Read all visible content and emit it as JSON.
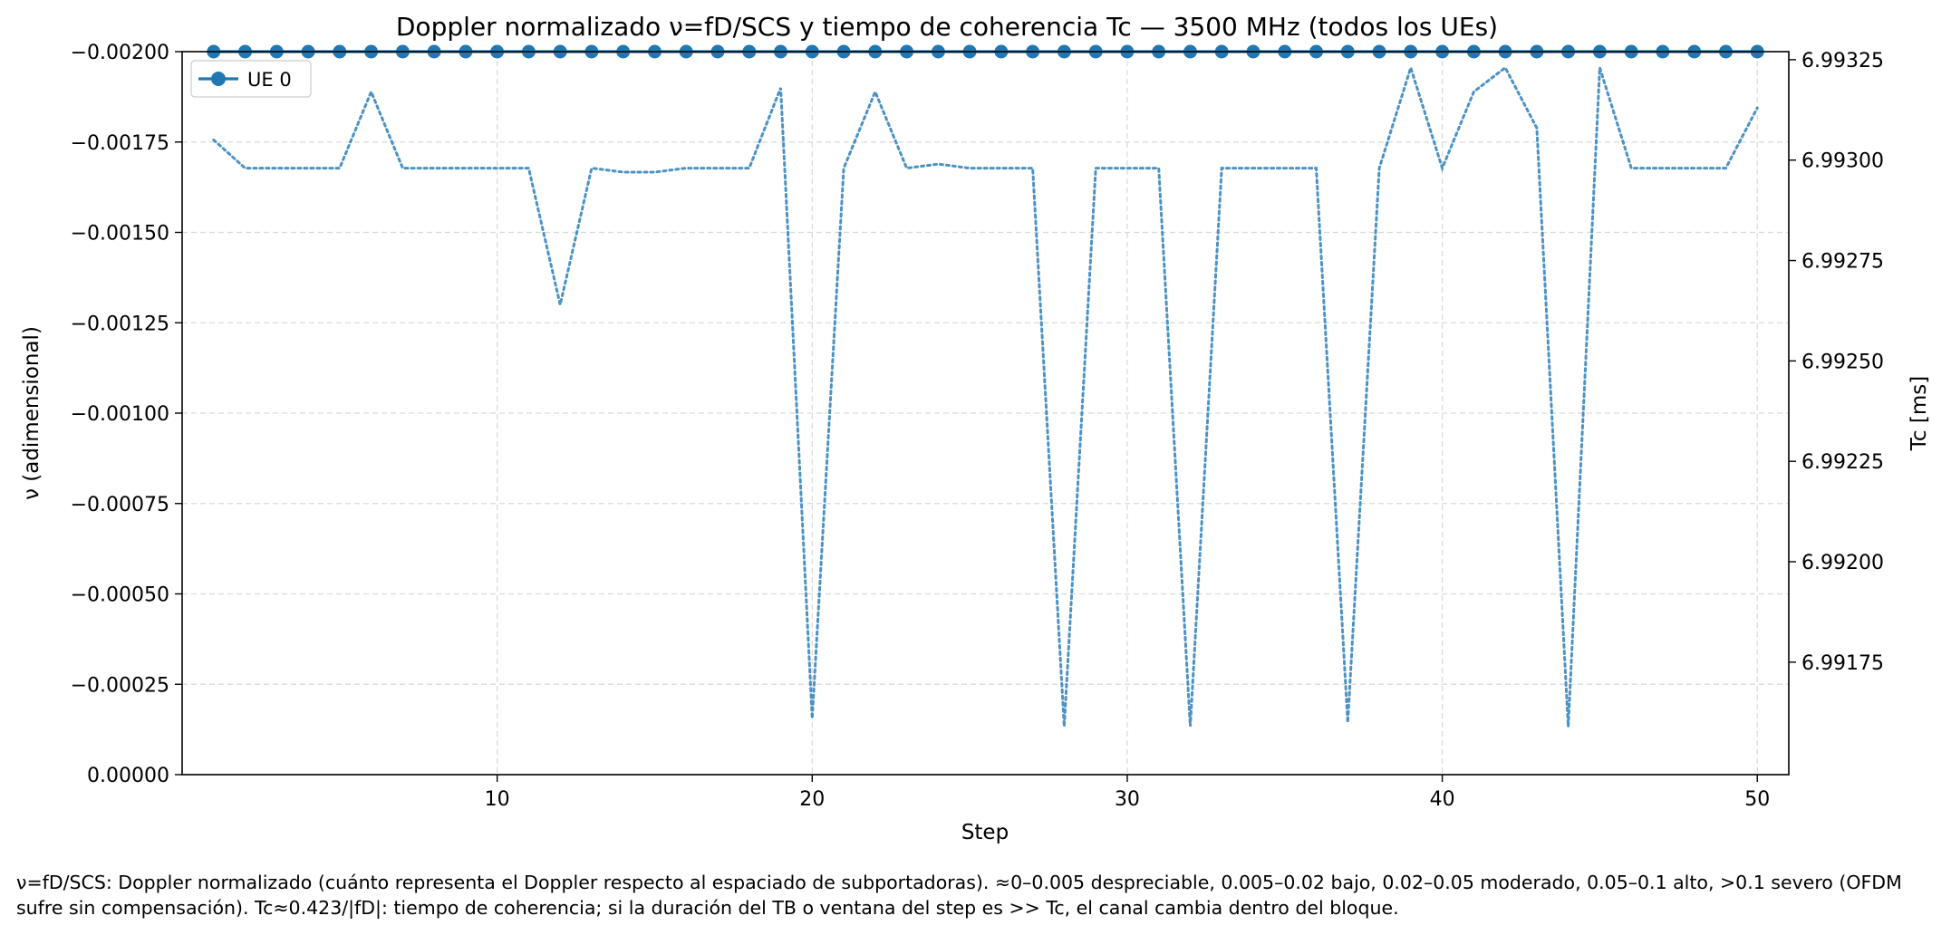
{
  "footnote": "ν=fD/SCS: Doppler normalizado (cuánto representa el Doppler respecto al espaciado de subportadoras). ≈0–0.005 despreciable, 0.005–0.02 bajo, 0.02–0.05 moderado, 0.05–0.1 alto, >0.1 severo (OFDM sufre sin compensación). Tc≈0.423/|fD|: tiempo de coherencia; si la duración del TB o ventana del step es >> Tc, el canal cambia dentro del bloque.",
  "chart_data": {
    "type": "line",
    "title": "Doppler normalizado ν=fD/SCS y tiempo de coherencia Tc — 3500 MHz (todos los UEs)",
    "xlabel": "Step",
    "ylabel": "ν (adimensional)",
    "y2label": "Tc [ms]",
    "xlim": [
      0.0,
      51.0
    ],
    "ylim": [
      0.0,
      -0.002
    ],
    "y2lim": [
      6.99147,
      6.99327
    ],
    "xticks": [
      10,
      20,
      30,
      40,
      50
    ],
    "xtick_labels": [
      "10",
      "20",
      "30",
      "40",
      "50"
    ],
    "yticks": [
      -0.002,
      -0.00175,
      -0.0015,
      -0.00125,
      -0.001,
      -0.00075,
      -0.0005,
      -0.00025,
      0.0
    ],
    "ytick_labels": [
      "−0.00200",
      "−0.00175",
      "−0.00150",
      "−0.00125",
      "−0.00100",
      "−0.00075",
      "−0.00050",
      "−0.00025",
      "0.00000"
    ],
    "y2ticks": [
      6.99175,
      6.992,
      6.99225,
      6.9925,
      6.99275,
      6.993,
      6.99325
    ],
    "y2tick_labels": [
      "6.99175",
      "6.99200",
      "6.99225",
      "6.99250",
      "6.99275",
      "6.99300",
      "6.99325"
    ],
    "grid": true,
    "legend_position": "upper-left",
    "colors": {
      "series": "#1f77b4",
      "grid": "#d9d9d9"
    },
    "series": [
      {
        "name": "UE 0",
        "axis": "left",
        "style": "solid-line-circle-markers",
        "x": [
          1,
          2,
          3,
          4,
          5,
          6,
          7,
          8,
          9,
          10,
          11,
          12,
          13,
          14,
          15,
          16,
          17,
          18,
          19,
          20,
          21,
          22,
          23,
          24,
          25,
          26,
          27,
          28,
          29,
          30,
          31,
          32,
          33,
          34,
          35,
          36,
          37,
          38,
          39,
          40,
          41,
          42,
          43,
          44,
          45,
          46,
          47,
          48,
          49,
          50
        ],
        "values": [
          -0.002,
          -0.002,
          -0.002,
          -0.002,
          -0.002,
          -0.002,
          -0.002,
          -0.002,
          -0.002,
          -0.002,
          -0.002,
          -0.002,
          -0.002,
          -0.002,
          -0.002,
          -0.002,
          -0.002,
          -0.002,
          -0.002,
          -0.002,
          -0.002,
          -0.002,
          -0.002,
          -0.002,
          -0.002,
          -0.002,
          -0.002,
          -0.002,
          -0.002,
          -0.002,
          -0.002,
          -0.002,
          -0.002,
          -0.002,
          -0.002,
          -0.002,
          -0.002,
          -0.002,
          -0.002,
          -0.002,
          -0.002,
          -0.002,
          -0.002,
          -0.002,
          -0.002,
          -0.002,
          -0.002,
          -0.002,
          -0.002,
          -0.002
        ]
      },
      {
        "name": "",
        "axis": "right",
        "style": "dotted-line",
        "x": [
          1,
          2,
          3,
          4,
          5,
          6,
          7,
          8,
          9,
          10,
          11,
          12,
          13,
          14,
          15,
          16,
          17,
          18,
          19,
          20,
          21,
          22,
          23,
          24,
          25,
          26,
          27,
          28,
          29,
          30,
          31,
          32,
          33,
          34,
          35,
          36,
          37,
          38,
          39,
          40,
          41,
          42,
          43,
          44,
          45,
          46,
          47,
          48,
          49,
          50
        ],
        "values": [
          6.99305,
          6.99298,
          6.99298,
          6.99298,
          6.99298,
          6.99317,
          6.99298,
          6.99298,
          6.99298,
          6.99298,
          6.99298,
          6.99264,
          6.99298,
          6.99297,
          6.99297,
          6.99298,
          6.99298,
          6.99298,
          6.99318,
          6.99161,
          6.99298,
          6.99317,
          6.99298,
          6.99299,
          6.99298,
          6.99298,
          6.99298,
          6.99159,
          6.99298,
          6.99298,
          6.99298,
          6.99159,
          6.99298,
          6.99298,
          6.99298,
          6.99298,
          6.9916,
          6.99298,
          6.99323,
          6.99298,
          6.99317,
          6.99323,
          6.99308,
          6.99159,
          6.99323,
          6.99298,
          6.99298,
          6.99298,
          6.99298,
          6.99313
        ]
      }
    ]
  }
}
